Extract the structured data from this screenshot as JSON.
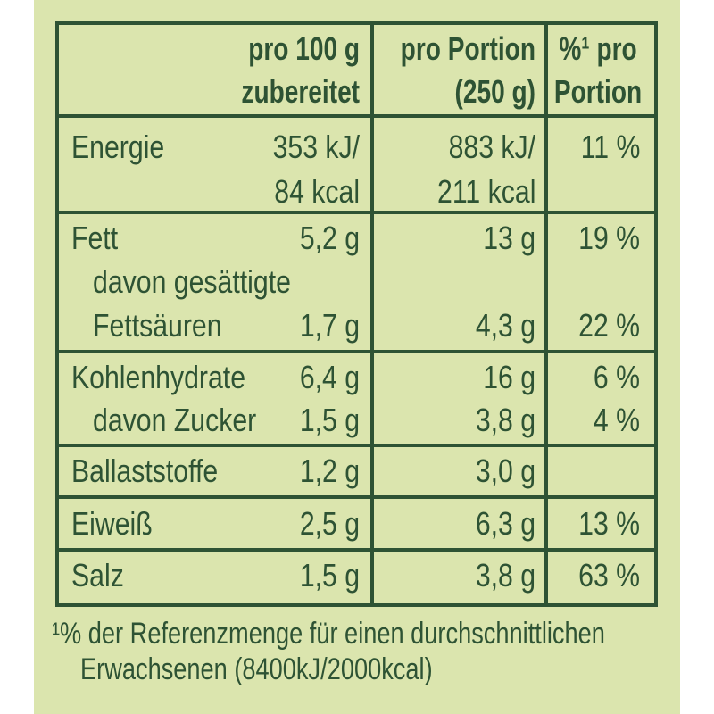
{
  "colors": {
    "background": "#dbe5ae",
    "ink": "#2e5334",
    "margin": "#ffffff"
  },
  "table": {
    "header": {
      "per100_line1": "pro 100 g",
      "per100_line2": "zubereitet",
      "portion_line1": "pro Portion",
      "portion_line2": "(250 g)",
      "pct_line1": "%¹ pro",
      "pct_line2": "Portion"
    },
    "rows": [
      {
        "id": "energie",
        "lines": [
          {
            "label": "Energie",
            "per100": "353 kJ/",
            "portion": "883 kJ/",
            "pct": "11 %"
          },
          {
            "label": "",
            "per100": "84 kcal",
            "portion": "211 kcal",
            "pct": ""
          }
        ]
      },
      {
        "id": "fett",
        "lines": [
          {
            "label": "Fett",
            "per100": "5,2 g",
            "portion": "13 g",
            "pct": "19 %"
          },
          {
            "label": "davon gesättigte",
            "per100": "",
            "portion": "",
            "pct": ""
          },
          {
            "label": "Fettsäuren",
            "per100": "1,7 g",
            "portion": "4,3 g",
            "pct": "22 %"
          }
        ]
      },
      {
        "id": "kohlenhydrate",
        "lines": [
          {
            "label": "Kohlenhydrate",
            "per100": "6,4 g",
            "portion": "16 g",
            "pct": "6 %"
          },
          {
            "label": "davon Zucker",
            "per100": "1,5 g",
            "portion": "3,8 g",
            "pct": "4 %"
          }
        ]
      },
      {
        "id": "ballaststoffe",
        "lines": [
          {
            "label": "Ballaststoffe",
            "per100": "1,2 g",
            "portion": "3,0 g",
            "pct": ""
          }
        ]
      },
      {
        "id": "eiweiss",
        "lines": [
          {
            "label": "Eiweiß",
            "per100": "2,5 g",
            "portion": "6,3 g",
            "pct": "13 %"
          }
        ]
      },
      {
        "id": "salz",
        "lines": [
          {
            "label": "Salz",
            "per100": "1,5 g",
            "portion": "3,8 g",
            "pct": "63 %"
          }
        ]
      }
    ]
  },
  "footnote": {
    "line1": "¹% der Referenzmenge für einen durchschnittlichen",
    "line2": "Erwachsenen (8400kJ/2000kcal)"
  }
}
